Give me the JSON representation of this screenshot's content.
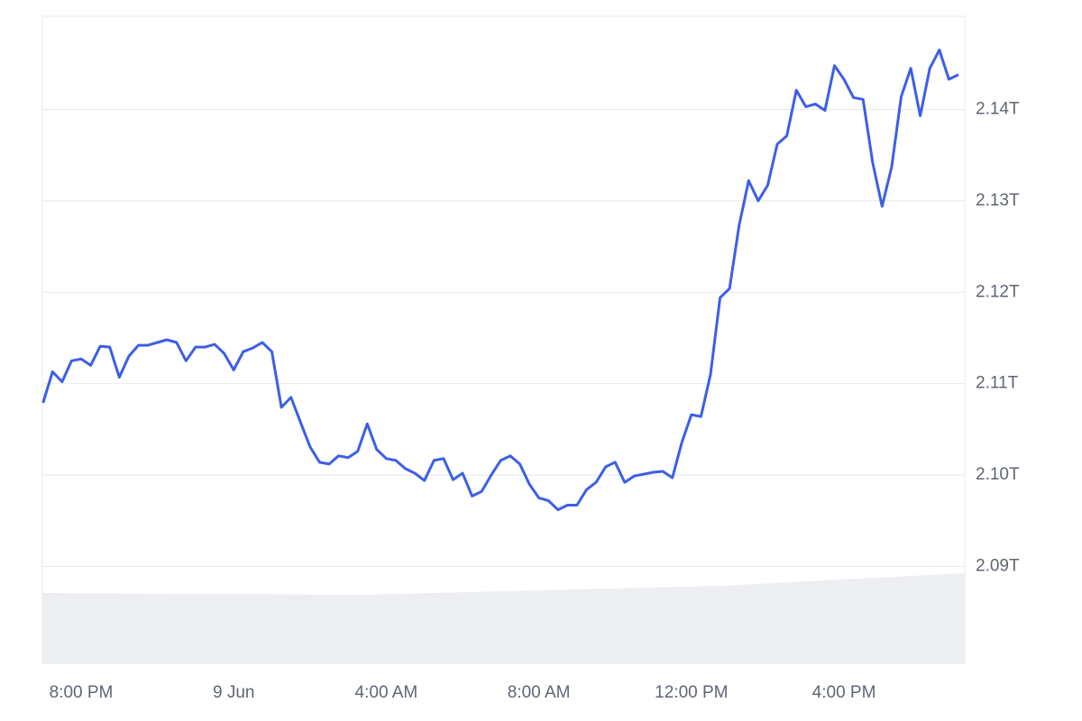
{
  "chart_data": {
    "type": "line",
    "x": [
      "8 Jun 19:00",
      "8 Jun 19:15",
      "8 Jun 19:30",
      "8 Jun 19:45",
      "8 Jun 20:00",
      "8 Jun 20:15",
      "8 Jun 20:30",
      "8 Jun 20:45",
      "8 Jun 21:00",
      "8 Jun 21:15",
      "8 Jun 21:30",
      "8 Jun 21:45",
      "8 Jun 22:00",
      "8 Jun 22:15",
      "8 Jun 22:30",
      "8 Jun 22:45",
      "8 Jun 23:00",
      "8 Jun 23:15",
      "8 Jun 23:30",
      "8 Jun 23:45",
      "9 Jun 00:00",
      "9 Jun 00:15",
      "9 Jun 00:30",
      "9 Jun 00:45",
      "9 Jun 01:00",
      "9 Jun 01:15",
      "9 Jun 01:30",
      "9 Jun 01:45",
      "9 Jun 02:00",
      "9 Jun 02:15",
      "9 Jun 02:30",
      "9 Jun 02:45",
      "9 Jun 03:00",
      "9 Jun 03:15",
      "9 Jun 03:30",
      "9 Jun 03:45",
      "9 Jun 04:00",
      "9 Jun 04:15",
      "9 Jun 04:30",
      "9 Jun 04:45",
      "9 Jun 05:00",
      "9 Jun 05:15",
      "9 Jun 05:30",
      "9 Jun 05:45",
      "9 Jun 06:00",
      "9 Jun 06:15",
      "9 Jun 06:30",
      "9 Jun 06:45",
      "9 Jun 07:00",
      "9 Jun 07:15",
      "9 Jun 07:30",
      "9 Jun 07:45",
      "9 Jun 08:00",
      "9 Jun 08:15",
      "9 Jun 08:30",
      "9 Jun 08:45",
      "9 Jun 09:00",
      "9 Jun 09:15",
      "9 Jun 09:30",
      "9 Jun 09:45",
      "9 Jun 10:00",
      "9 Jun 10:15",
      "9 Jun 10:30",
      "9 Jun 10:45",
      "9 Jun 11:00",
      "9 Jun 11:15",
      "9 Jun 11:30",
      "9 Jun 11:45",
      "9 Jun 12:00",
      "9 Jun 12:15",
      "9 Jun 12:30",
      "9 Jun 12:45",
      "9 Jun 13:00",
      "9 Jun 13:15",
      "9 Jun 13:30",
      "9 Jun 13:45",
      "9 Jun 14:00",
      "9 Jun 14:15",
      "9 Jun 14:30",
      "9 Jun 14:45",
      "9 Jun 15:00",
      "9 Jun 15:15",
      "9 Jun 15:30",
      "9 Jun 15:45",
      "9 Jun 16:00",
      "9 Jun 16:15",
      "9 Jun 16:30",
      "9 Jun 16:45",
      "9 Jun 17:00",
      "9 Jun 17:15",
      "9 Jun 17:30",
      "9 Jun 17:45",
      "9 Jun 18:00",
      "9 Jun 18:15",
      "9 Jun 18:30",
      "9 Jun 18:45",
      "9 Jun 19:00"
    ],
    "values": [
      2.1079,
      2.1113,
      2.1102,
      2.1125,
      2.1127,
      2.112,
      2.1141,
      2.114,
      2.1107,
      2.113,
      2.1142,
      2.1142,
      2.1145,
      2.1148,
      2.1145,
      2.1125,
      2.114,
      2.114,
      2.1143,
      2.1133,
      2.1115,
      2.1135,
      2.1139,
      2.1145,
      2.1135,
      2.1074,
      2.1085,
      2.1058,
      2.1031,
      2.1014,
      2.1012,
      2.1021,
      2.1019,
      2.1026,
      2.1056,
      2.1028,
      2.1018,
      2.1016,
      2.1007,
      2.1002,
      2.0994,
      2.1016,
      2.1018,
      2.0995,
      2.1002,
      2.0977,
      2.0982,
      2.1,
      2.1016,
      2.1021,
      2.1012,
      2.099,
      2.0975,
      2.0972,
      2.0962,
      2.0967,
      2.0967,
      2.0984,
      2.0992,
      2.1009,
      2.1014,
      2.0992,
      2.0999,
      2.1001,
      2.1003,
      2.1004,
      2.0997,
      2.1036,
      2.1066,
      2.1064,
      2.111,
      2.1194,
      2.1204,
      2.1273,
      2.1322,
      2.13,
      2.1317,
      2.1362,
      2.1371,
      2.1421,
      2.1403,
      2.1406,
      2.1399,
      2.1448,
      2.1433,
      2.1413,
      2.1411,
      2.1342,
      2.1294,
      2.1337,
      2.1414,
      2.1445,
      2.1393,
      2.1445,
      2.1465,
      2.1433,
      2.1438
    ],
    "color": "#3d5fe6",
    "xlim": [
      "8 Jun 18:59",
      "9 Jun 19:10"
    ],
    "xticks": [
      {
        "value": "8 Jun 20:00",
        "label": "8:00 PM"
      },
      {
        "value": "9 Jun 00:00",
        "label": "9 Jun"
      },
      {
        "value": "9 Jun 04:00",
        "label": "4:00 AM"
      },
      {
        "value": "9 Jun 08:00",
        "label": "8:00 AM"
      },
      {
        "value": "9 Jun 12:00",
        "label": "12:00 PM"
      },
      {
        "value": "9 Jun 16:00",
        "label": "4:00 PM"
      }
    ],
    "ylim": [
      2.0793,
      2.1502
    ],
    "yticks": [
      {
        "value": 2.09,
        "label": "2.09T"
      },
      {
        "value": 2.1,
        "label": "2.10T"
      },
      {
        "value": 2.11,
        "label": "2.11T"
      },
      {
        "value": 2.12,
        "label": "2.12T"
      },
      {
        "value": 2.13,
        "label": "2.13T"
      },
      {
        "value": 2.14,
        "label": "2.14T"
      }
    ],
    "grid": true
  }
}
